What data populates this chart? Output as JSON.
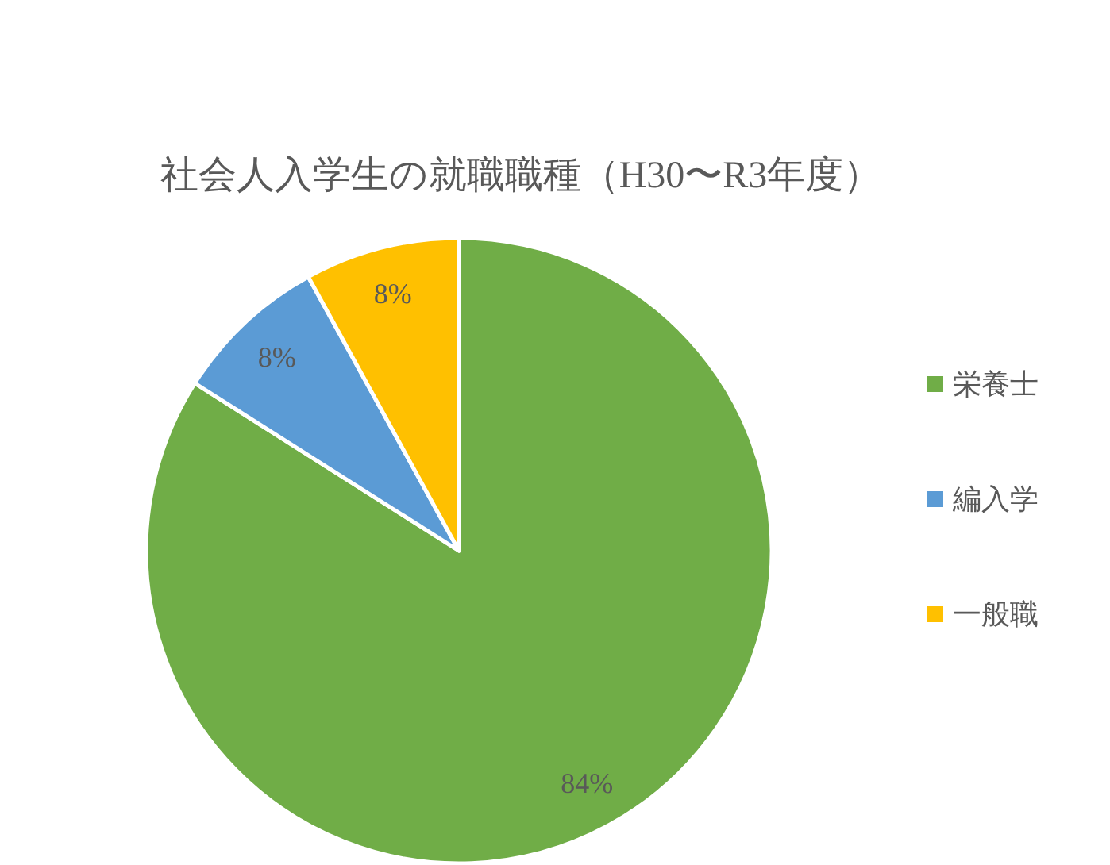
{
  "chart_data": {
    "type": "pie",
    "title": "社会人入学生の就職職種（H30〜R3年度）",
    "categories": [
      "栄養士",
      "編入学",
      "一般職"
    ],
    "values": [
      84,
      8,
      8
    ],
    "value_labels": [
      "84%",
      "8%",
      "8%"
    ],
    "colors": [
      "#70ad47",
      "#5b9bd5",
      "#ffc000"
    ],
    "legend": "right"
  }
}
